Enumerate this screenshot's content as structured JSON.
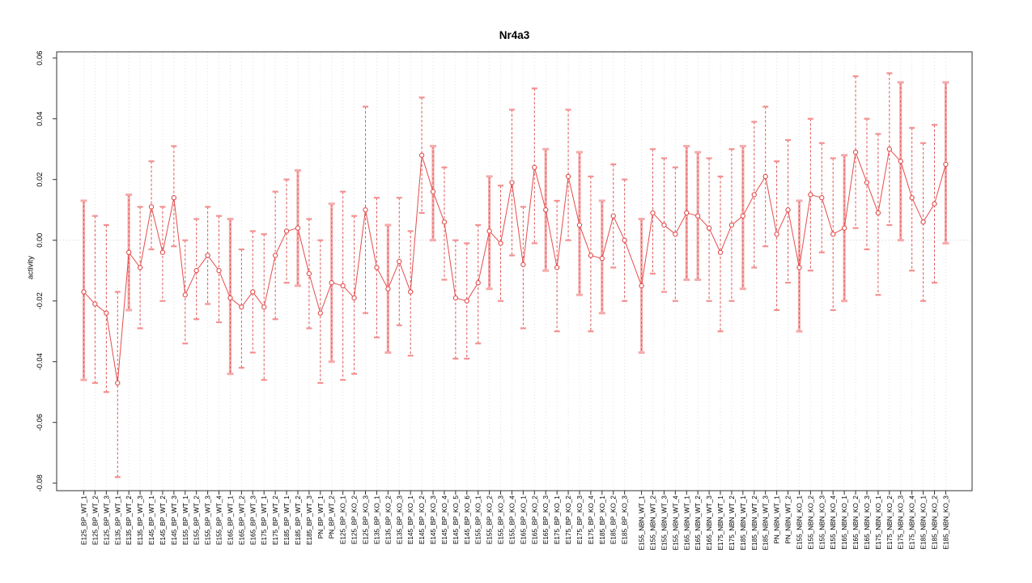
{
  "chart_data": {
    "type": "scatter",
    "title": "Nr4a3",
    "xlabel": "",
    "ylabel": "activity",
    "ylim": [
      -0.08,
      0.06
    ],
    "yticks": [
      0.06,
      0.04,
      0.02,
      0.0,
      -0.02,
      -0.04,
      -0.06,
      -0.08
    ],
    "grid": "dotted vertical gridline at every category; dotted horizontal line at zero",
    "legend": "none",
    "point_style": "open circles connected by thin line, vertical error bars with caps",
    "group_gap_after_index": 49,
    "categories": [
      "E125_BP_WT_1",
      "E125_BP_WT_2",
      "E125_BP_WT_3",
      "E135_BP_WT_1",
      "E135_BP_WT_2",
      "E135_BP_WT_3",
      "E145_BP_WT_1",
      "E145_BP_WT_2",
      "E145_BP_WT_3",
      "E155_BP_WT_1",
      "E155_BP_WT_2",
      "E155_BP_WT_3",
      "E155_BP_WT_4",
      "E165_BP_WT_1",
      "E165_BP_WT_2",
      "E165_BP_WT_3",
      "E175_BP_WT_1",
      "E175_BP_WT_2",
      "E185_BP_WT_1",
      "E185_BP_WT_2",
      "E185_BP_WT_3",
      "PN_BP_WT_1",
      "PN_BP_WT_2",
      "E125_BP_KO_1",
      "E125_BP_KO_2",
      "E125_BP_KO_3",
      "E135_BP_KO_1",
      "E135_BP_KO_2",
      "E135_BP_KO_3",
      "E145_BP_KO_1",
      "E145_BP_KO_2",
      "E145_BP_KO_3",
      "E145_BP_KO_4",
      "E145_BP_KO_5",
      "E145_BP_KO_6",
      "E155_BP_KO_1",
      "E155_BP_KO_2",
      "E155_BP_KO_3",
      "E155_BP_KO_4",
      "E165_BP_KO_1",
      "E165_BP_KO_2",
      "E165_BP_KO_3",
      "E175_BP_KO_1",
      "E175_BP_KO_2",
      "E175_BP_KO_3",
      "E175_BP_KO_4",
      "E185_BP_KO_1",
      "E185_BP_KO_2",
      "E185_BP_KO_3",
      "E155_NBN_WT_1",
      "E155_NBN_WT_2",
      "E155_NBN_WT_3",
      "E155_NBN_WT_4",
      "E165_NBN_WT_1",
      "E165_NBN_WT_2",
      "E165_NBN_WT_3",
      "E175_NBN_WT_1",
      "E175_NBN_WT_2",
      "E185_NBN_WT_1",
      "E185_NBN_WT_2",
      "E185_NBN_WT_3",
      "PN_NBN_WT_1",
      "PN_NBN_WT_2",
      "E155_NBN_KO_1",
      "E155_NBN_KO_2",
      "E155_NBN_KO_3",
      "E155_NBN_KO_4",
      "E165_NBN_KO_1",
      "E165_NBN_KO_2",
      "E165_NBN_KO_3",
      "E175_NBN_KO_1",
      "E175_NBN_KO_2",
      "E175_NBN_KO_3",
      "E175_NBN_KO_4",
      "E185_NBN_KO_1",
      "E185_NBN_KO_2",
      "E185_NBN_KO_3"
    ],
    "series": [
      {
        "name": "activity",
        "values": [
          -0.017,
          -0.021,
          -0.024,
          -0.047,
          -0.004,
          -0.009,
          0.011,
          -0.004,
          0.014,
          -0.018,
          -0.01,
          -0.005,
          -0.01,
          -0.019,
          -0.022,
          -0.017,
          -0.022,
          -0.005,
          0.003,
          0.004,
          -0.011,
          -0.024,
          -0.014,
          -0.015,
          -0.019,
          0.01,
          -0.009,
          -0.016,
          -0.007,
          -0.017,
          0.028,
          0.016,
          0.006,
          -0.019,
          -0.02,
          -0.014,
          0.003,
          -0.001,
          0.019,
          -0.008,
          0.024,
          0.01,
          -0.009,
          0.021,
          0.005,
          -0.005,
          -0.006,
          0.008,
          0.0,
          -0.015,
          0.009,
          0.005,
          0.002,
          0.009,
          0.008,
          0.004,
          -0.004,
          0.005,
          0.008,
          0.015,
          0.021,
          0.002,
          0.01,
          -0.009,
          0.015,
          0.014,
          0.002,
          0.004,
          0.029,
          0.019,
          0.009,
          0.03,
          0.026,
          0.014,
          0.006,
          0.012,
          0.025
        ],
        "ci_low": [
          -0.046,
          -0.047,
          -0.05,
          -0.078,
          -0.023,
          -0.029,
          -0.003,
          -0.02,
          -0.002,
          -0.034,
          -0.026,
          -0.021,
          -0.027,
          -0.044,
          -0.042,
          -0.037,
          -0.046,
          -0.026,
          -0.014,
          -0.015,
          -0.029,
          -0.047,
          -0.04,
          -0.046,
          -0.044,
          -0.024,
          -0.032,
          -0.037,
          -0.028,
          -0.038,
          0.009,
          0.0,
          -0.013,
          -0.039,
          -0.039,
          -0.034,
          -0.016,
          -0.02,
          -0.005,
          -0.029,
          -0.001,
          -0.01,
          -0.03,
          0.0,
          -0.018,
          -0.03,
          -0.024,
          -0.009,
          -0.02,
          -0.037,
          -0.011,
          -0.017,
          -0.02,
          -0.013,
          -0.013,
          -0.02,
          -0.03,
          -0.02,
          -0.016,
          -0.009,
          -0.002,
          -0.023,
          -0.014,
          -0.03,
          -0.01,
          -0.004,
          -0.023,
          -0.02,
          0.004,
          -0.003,
          -0.018,
          0.005,
          0.0,
          -0.01,
          -0.02,
          -0.014,
          -0.001
        ],
        "ci_high": [
          0.013,
          0.008,
          0.005,
          -0.017,
          0.015,
          0.011,
          0.026,
          0.011,
          0.031,
          0.0,
          0.007,
          0.011,
          0.008,
          0.007,
          -0.003,
          0.003,
          0.002,
          0.016,
          0.02,
          0.023,
          0.007,
          0.0,
          0.012,
          0.016,
          0.008,
          0.044,
          0.014,
          0.005,
          0.014,
          0.003,
          0.047,
          0.031,
          0.024,
          0.0,
          -0.001,
          0.005,
          0.021,
          0.018,
          0.043,
          0.011,
          0.05,
          0.03,
          0.013,
          0.043,
          0.029,
          0.021,
          0.013,
          0.025,
          0.02,
          0.007,
          0.03,
          0.027,
          0.024,
          0.031,
          0.029,
          0.027,
          0.021,
          0.03,
          0.031,
          0.039,
          0.044,
          0.026,
          0.033,
          0.013,
          0.04,
          0.032,
          0.027,
          0.028,
          0.054,
          0.04,
          0.035,
          0.055,
          0.052,
          0.037,
          0.032,
          0.038,
          0.052
        ],
        "thick_bar_indices": [
          1,
          5,
          14,
          20,
          23,
          28,
          32,
          37,
          42,
          45,
          47,
          50,
          54,
          55,
          59,
          64,
          68,
          73,
          77
        ]
      }
    ],
    "colors": {
      "line": "#e64c4c",
      "point": "#e04848",
      "error_stem": "#e05555",
      "error_cap": "#f49090",
      "error_thick": "#f5abab",
      "grid": "#dcdcdc",
      "zero_line": "#c9c9c9",
      "axis": "#333333",
      "text": "#000000"
    }
  }
}
